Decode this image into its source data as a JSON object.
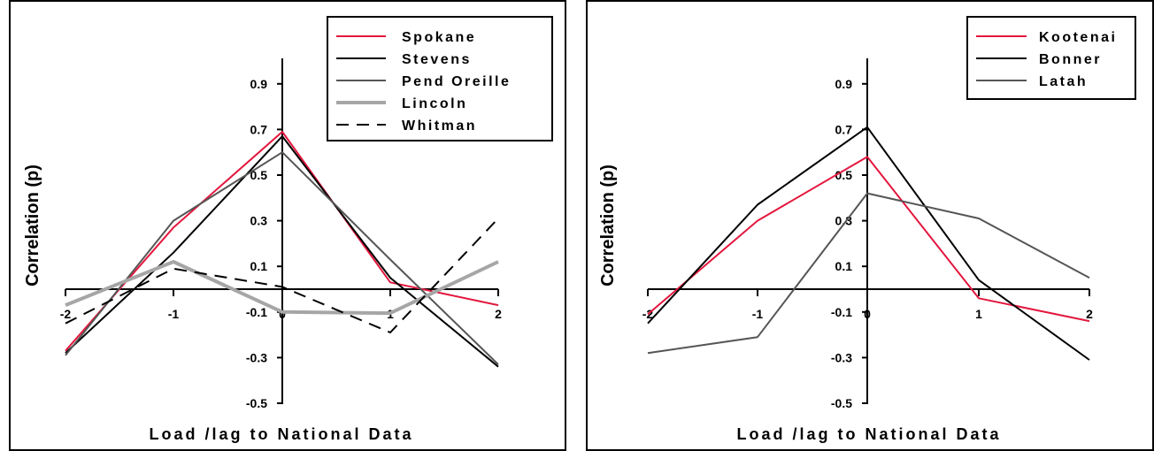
{
  "chart_data": [
    {
      "type": "line",
      "title": "",
      "xlabel": "Load /lag to National Data",
      "ylabel": "Correlation (p)",
      "x": [
        -2,
        -1,
        0,
        1,
        2
      ],
      "x_tick_labels": [
        "-2",
        "-1",
        "0",
        "1",
        "2"
      ],
      "ylim": [
        -0.5,
        1.0
      ],
      "y_tick_labels": [
        "0.9",
        "0.7",
        "0.5",
        "0.3",
        "0.1",
        "-0.1",
        "-0.3",
        "-0.5"
      ],
      "y_ticks": [
        0.9,
        0.7,
        0.5,
        0.3,
        0.1,
        -0.1,
        -0.3,
        -0.5
      ],
      "grid": false,
      "legend_position": "top-right",
      "series": [
        {
          "name": "Spokane",
          "values": [
            -0.27,
            0.27,
            0.69,
            0.03,
            -0.07
          ],
          "color": "#e3173e",
          "style": "solid"
        },
        {
          "name": "Stevens",
          "values": [
            -0.28,
            0.16,
            0.67,
            0.05,
            -0.34
          ],
          "color": "#000000",
          "style": "solid"
        },
        {
          "name": "Pend Oreille",
          "values": [
            -0.29,
            0.3,
            0.6,
            0.13,
            -0.33
          ],
          "color": "#555555",
          "style": "solid"
        },
        {
          "name": "Lincoln",
          "values": [
            -0.07,
            0.12,
            -0.1,
            -0.105,
            0.12
          ],
          "color": "#a6a6a6",
          "style": "thick"
        },
        {
          "name": "Whitman",
          "values": [
            -0.15,
            0.09,
            0.01,
            -0.19,
            0.31
          ],
          "color": "#000000",
          "style": "dashed"
        }
      ]
    },
    {
      "type": "line",
      "title": "",
      "xlabel": "Load /lag to National Data",
      "ylabel": "Correlation (p)",
      "x": [
        -2,
        -1,
        0,
        1,
        2
      ],
      "x_tick_labels": [
        "-2",
        "-1",
        "0",
        "1",
        "2"
      ],
      "ylim": [
        -0.5,
        1.0
      ],
      "y_tick_labels": [
        "0.9",
        "0.7",
        "0.5",
        "0.3",
        "0.1",
        "-0.1",
        "-0.3",
        "-0.5"
      ],
      "y_ticks": [
        0.9,
        0.7,
        0.5,
        0.3,
        0.1,
        -0.1,
        -0.3,
        -0.5
      ],
      "grid": false,
      "legend_position": "top-right",
      "series": [
        {
          "name": "Kootenai",
          "values": [
            -0.11,
            0.3,
            0.58,
            -0.04,
            -0.14
          ],
          "color": "#e3173e",
          "style": "solid"
        },
        {
          "name": "Bonner",
          "values": [
            -0.15,
            0.37,
            0.71,
            0.04,
            -0.31
          ],
          "color": "#000000",
          "style": "solid"
        },
        {
          "name": "Latah",
          "values": [
            -0.28,
            -0.21,
            0.42,
            0.31,
            0.05
          ],
          "color": "#555555",
          "style": "solid"
        }
      ]
    }
  ]
}
